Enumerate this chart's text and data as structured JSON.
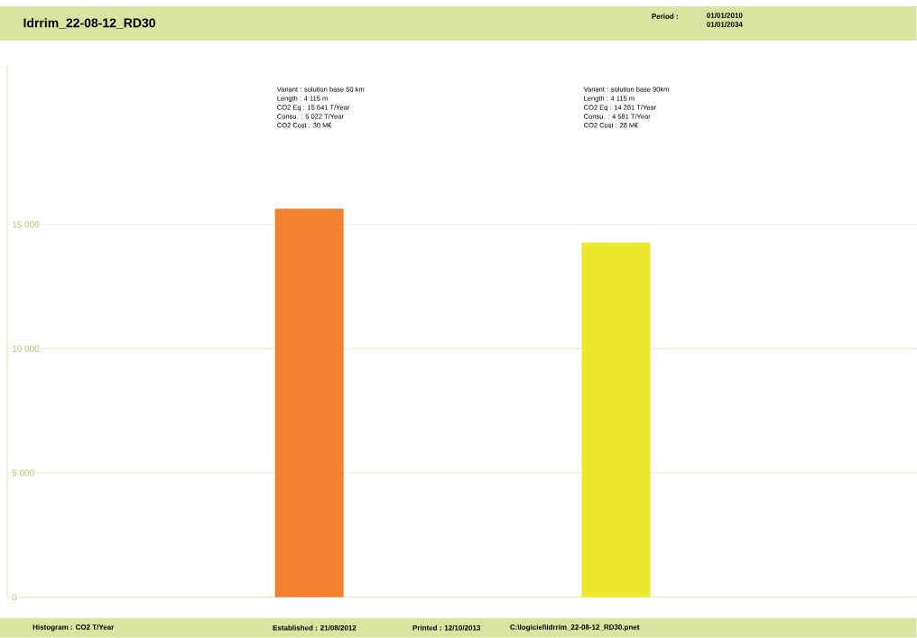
{
  "chart_data": {
    "type": "bar",
    "title": "Idrrim_22-08-12_RD30",
    "categories": [
      null,
      null
    ],
    "values": [
      15641,
      14281
    ],
    "colors": [
      "#f28230",
      "#eee82c"
    ],
    "ylim": [
      0,
      21500
    ],
    "yticks": [
      {
        "value": 0,
        "label": "0"
      },
      {
        "value": 5000,
        "label": "5 000"
      },
      {
        "value": 10000,
        "label": "10 000"
      },
      {
        "value": 15000,
        "label": "15 000"
      }
    ],
    "grid": "y",
    "annotations": [
      "Variant : solution base 50 km",
      "Length : 4 115 m",
      "CO2 Eq : 15 641 T/Year",
      "Consu. : 5 022 T/Year",
      "CO2 Cost : 30 M€",
      "Variant : solution base 90km",
      "Length : 4 115 m",
      "CO2 Eq : 14 281 T/Year",
      "Consu. : 4 581 T/Year",
      "CO2 Cost : 28 M€",
      "Period :",
      "01/01/2010",
      "01/01/2034",
      "Histogram : CO2  T/Year",
      "Established : 21/08/2012",
      "Printed : 12/10/2013",
      "C:\\logiciel\\Idrrim_22-08-12_RD30.pnet"
    ]
  }
}
